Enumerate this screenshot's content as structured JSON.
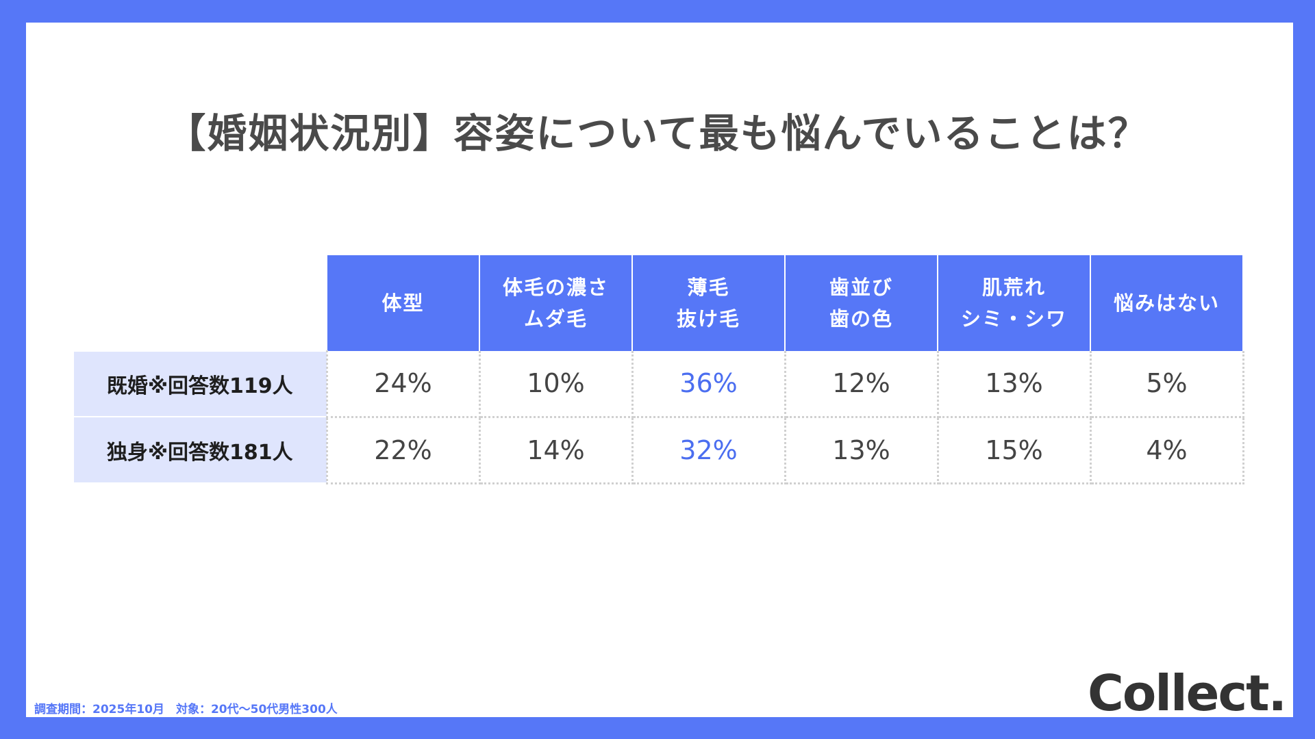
{
  "title": "【婚姻状況別】容姿について最も悩んでいることは？",
  "footnote": "調査期間：2025年10月　対象：20代〜50代男性300人",
  "logo": "Collect.",
  "colors": {
    "frame": "#5677f7",
    "header_bg": "#5677f7",
    "row_label_bg": "#dfe5fd",
    "highlight": "#4b6ef0",
    "text": "#444444"
  },
  "chart_data": {
    "type": "table",
    "title": "【婚姻状況別】容姿について最も悩んでいることは？",
    "columns": [
      {
        "line1": "体型",
        "line2": ""
      },
      {
        "line1": "体毛の濃さ",
        "line2": "ムダ毛"
      },
      {
        "line1": "薄毛",
        "line2": "抜け毛"
      },
      {
        "line1": "歯並び",
        "line2": "歯の色"
      },
      {
        "line1": "肌荒れ",
        "line2": "シミ・シワ"
      },
      {
        "line1": "悩みはない",
        "line2": ""
      }
    ],
    "rows": [
      {
        "label": "既婚※回答数119人",
        "values": [
          "24%",
          "10%",
          "36%",
          "12%",
          "13%",
          "5%"
        ]
      },
      {
        "label": "独身※回答数181人",
        "values": [
          "22%",
          "14%",
          "32%",
          "13%",
          "15%",
          "4%"
        ]
      }
    ],
    "highlight_column": 2
  }
}
